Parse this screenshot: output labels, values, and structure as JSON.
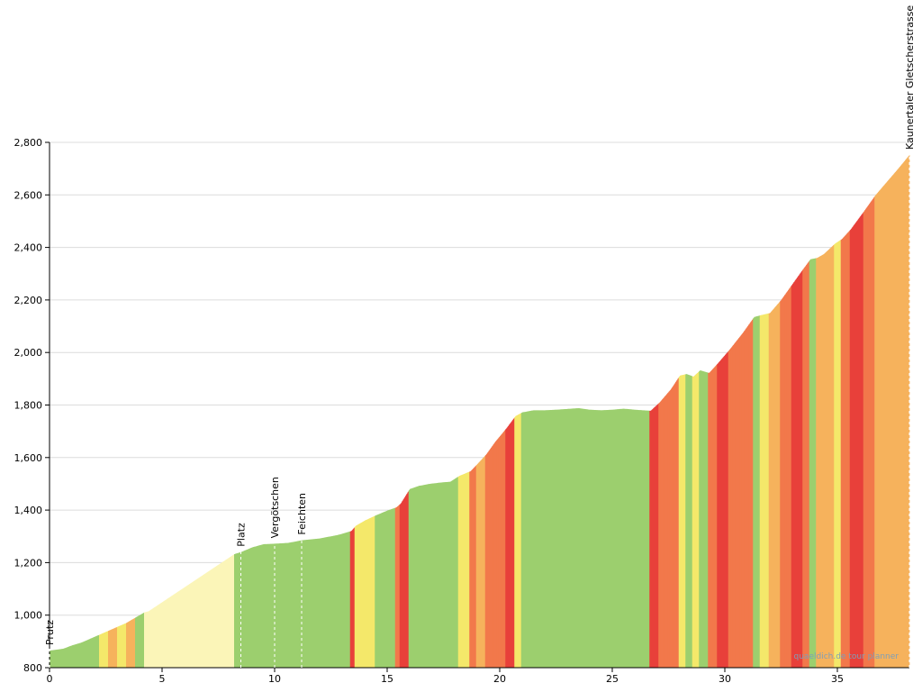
{
  "chart_data": {
    "type": "area",
    "title": "",
    "xlabel": "",
    "ylabel": "",
    "xlim": [
      0,
      38.2
    ],
    "ylim": [
      800,
      2800
    ],
    "x_ticks": [
      0,
      5,
      10,
      15,
      20,
      25,
      30,
      35
    ],
    "x_tick_labels": [
      "0",
      "5",
      "10",
      "15",
      "20",
      "25",
      "30",
      "35"
    ],
    "y_ticks": [
      800,
      1000,
      1200,
      1400,
      1600,
      1800,
      2000,
      2200,
      2400,
      2600,
      2800
    ],
    "y_tick_labels": [
      "800",
      "1,000",
      "1,200",
      "1,400",
      "1,600",
      "1,800",
      "2,000",
      "2,200",
      "2,400",
      "2,600",
      "2,800"
    ],
    "grid": true,
    "gradient_colors": {
      "flat": "#9ccf6e",
      "mild": "#f4e86a",
      "moderate": "#f6b25c",
      "steep": "#f2784b",
      "very_steep": "#e8403a",
      "unknown": "#fbf5b8"
    },
    "profile": [
      {
        "x": 0.0,
        "y": 865,
        "grade": "flat"
      },
      {
        "x": 0.6,
        "y": 872,
        "grade": "flat"
      },
      {
        "x": 1.0,
        "y": 885,
        "grade": "flat"
      },
      {
        "x": 1.4,
        "y": 895,
        "grade": "flat"
      },
      {
        "x": 1.8,
        "y": 910,
        "grade": "flat"
      },
      {
        "x": 2.2,
        "y": 925,
        "grade": "flat"
      },
      {
        "x": 2.6,
        "y": 940,
        "grade": "mild"
      },
      {
        "x": 3.0,
        "y": 955,
        "grade": "moderate"
      },
      {
        "x": 3.4,
        "y": 970,
        "grade": "mild"
      },
      {
        "x": 3.8,
        "y": 990,
        "grade": "moderate"
      },
      {
        "x": 4.2,
        "y": 1010,
        "grade": "flat"
      },
      {
        "x": 4.4,
        "y": 1015,
        "grade": "unknown"
      },
      {
        "x": 8.2,
        "y": 1232,
        "grade": "unknown"
      },
      {
        "x": 8.5,
        "y": 1240,
        "grade": "flat"
      },
      {
        "x": 9.0,
        "y": 1258,
        "grade": "flat"
      },
      {
        "x": 9.5,
        "y": 1270,
        "grade": "flat"
      },
      {
        "x": 10.0,
        "y": 1272,
        "grade": "flat"
      },
      {
        "x": 10.6,
        "y": 1275,
        "grade": "flat"
      },
      {
        "x": 11.2,
        "y": 1285,
        "grade": "flat"
      },
      {
        "x": 12.0,
        "y": 1292,
        "grade": "flat"
      },
      {
        "x": 12.8,
        "y": 1305,
        "grade": "flat"
      },
      {
        "x": 13.4,
        "y": 1320,
        "grade": "flat"
      },
      {
        "x": 13.6,
        "y": 1340,
        "grade": "very_steep"
      },
      {
        "x": 14.0,
        "y": 1360,
        "grade": "mild"
      },
      {
        "x": 14.5,
        "y": 1380,
        "grade": "mild"
      },
      {
        "x": 15.0,
        "y": 1398,
        "grade": "flat"
      },
      {
        "x": 15.4,
        "y": 1410,
        "grade": "flat"
      },
      {
        "x": 15.6,
        "y": 1425,
        "grade": "steep"
      },
      {
        "x": 16.0,
        "y": 1480,
        "grade": "very_steep"
      },
      {
        "x": 16.4,
        "y": 1492,
        "grade": "flat"
      },
      {
        "x": 16.9,
        "y": 1500,
        "grade": "flat"
      },
      {
        "x": 17.4,
        "y": 1505,
        "grade": "flat"
      },
      {
        "x": 17.8,
        "y": 1508,
        "grade": "flat"
      },
      {
        "x": 18.2,
        "y": 1530,
        "grade": "flat"
      },
      {
        "x": 18.7,
        "y": 1548,
        "grade": "mild"
      },
      {
        "x": 19.0,
        "y": 1575,
        "grade": "steep"
      },
      {
        "x": 19.4,
        "y": 1612,
        "grade": "moderate"
      },
      {
        "x": 19.8,
        "y": 1660,
        "grade": "steep"
      },
      {
        "x": 20.3,
        "y": 1712,
        "grade": "steep"
      },
      {
        "x": 20.7,
        "y": 1758,
        "grade": "very_steep"
      },
      {
        "x": 21.0,
        "y": 1772,
        "grade": "mild"
      },
      {
        "x": 21.5,
        "y": 1780,
        "grade": "flat"
      },
      {
        "x": 22.0,
        "y": 1780,
        "grade": "flat"
      },
      {
        "x": 22.5,
        "y": 1782,
        "grade": "flat"
      },
      {
        "x": 23.0,
        "y": 1785,
        "grade": "flat"
      },
      {
        "x": 23.5,
        "y": 1788,
        "grade": "flat"
      },
      {
        "x": 24.0,
        "y": 1782,
        "grade": "flat"
      },
      {
        "x": 24.5,
        "y": 1780,
        "grade": "flat"
      },
      {
        "x": 25.0,
        "y": 1782,
        "grade": "flat"
      },
      {
        "x": 25.5,
        "y": 1786,
        "grade": "flat"
      },
      {
        "x": 26.0,
        "y": 1782,
        "grade": "flat"
      },
      {
        "x": 26.7,
        "y": 1778,
        "grade": "flat"
      },
      {
        "x": 27.1,
        "y": 1810,
        "grade": "very_steep"
      },
      {
        "x": 27.6,
        "y": 1860,
        "grade": "steep"
      },
      {
        "x": 28.0,
        "y": 1912,
        "grade": "steep"
      },
      {
        "x": 28.3,
        "y": 1918,
        "grade": "mild"
      },
      {
        "x": 28.6,
        "y": 1908,
        "grade": "flat"
      },
      {
        "x": 28.9,
        "y": 1932,
        "grade": "mild"
      },
      {
        "x": 29.3,
        "y": 1922,
        "grade": "flat"
      },
      {
        "x": 29.7,
        "y": 1960,
        "grade": "steep"
      },
      {
        "x": 30.2,
        "y": 2010,
        "grade": "very_steep"
      },
      {
        "x": 30.8,
        "y": 2075,
        "grade": "steep"
      },
      {
        "x": 31.3,
        "y": 2135,
        "grade": "steep"
      },
      {
        "x": 31.6,
        "y": 2142,
        "grade": "flat"
      },
      {
        "x": 32.0,
        "y": 2150,
        "grade": "mild"
      },
      {
        "x": 32.5,
        "y": 2200,
        "grade": "moderate"
      },
      {
        "x": 33.0,
        "y": 2260,
        "grade": "steep"
      },
      {
        "x": 33.5,
        "y": 2320,
        "grade": "very_steep"
      },
      {
        "x": 33.8,
        "y": 2355,
        "grade": "steep"
      },
      {
        "x": 34.1,
        "y": 2360,
        "grade": "flat"
      },
      {
        "x": 34.4,
        "y": 2375,
        "grade": "moderate"
      },
      {
        "x": 34.9,
        "y": 2415,
        "grade": "moderate"
      },
      {
        "x": 35.2,
        "y": 2432,
        "grade": "mild"
      },
      {
        "x": 35.6,
        "y": 2470,
        "grade": "steep"
      },
      {
        "x": 36.2,
        "y": 2540,
        "grade": "very_steep"
      },
      {
        "x": 36.7,
        "y": 2600,
        "grade": "steep"
      },
      {
        "x": 37.2,
        "y": 2650,
        "grade": "moderate"
      },
      {
        "x": 37.7,
        "y": 2700,
        "grade": "moderate"
      },
      {
        "x": 38.2,
        "y": 2752,
        "grade": "moderate"
      }
    ],
    "waypoints": [
      {
        "label": "Prutz",
        "x": 0.0,
        "y": 865
      },
      {
        "label": "Platz",
        "x": 8.5,
        "y": 1240
      },
      {
        "label": "Vergötschen",
        "x": 10.0,
        "y": 1272
      },
      {
        "label": "Feichten",
        "x": 11.2,
        "y": 1285
      },
      {
        "label": "Kaunertaler Gletscherstrasse",
        "x": 38.2,
        "y": 2752
      }
    ],
    "watermark": "quaeldich.de tour planner"
  }
}
